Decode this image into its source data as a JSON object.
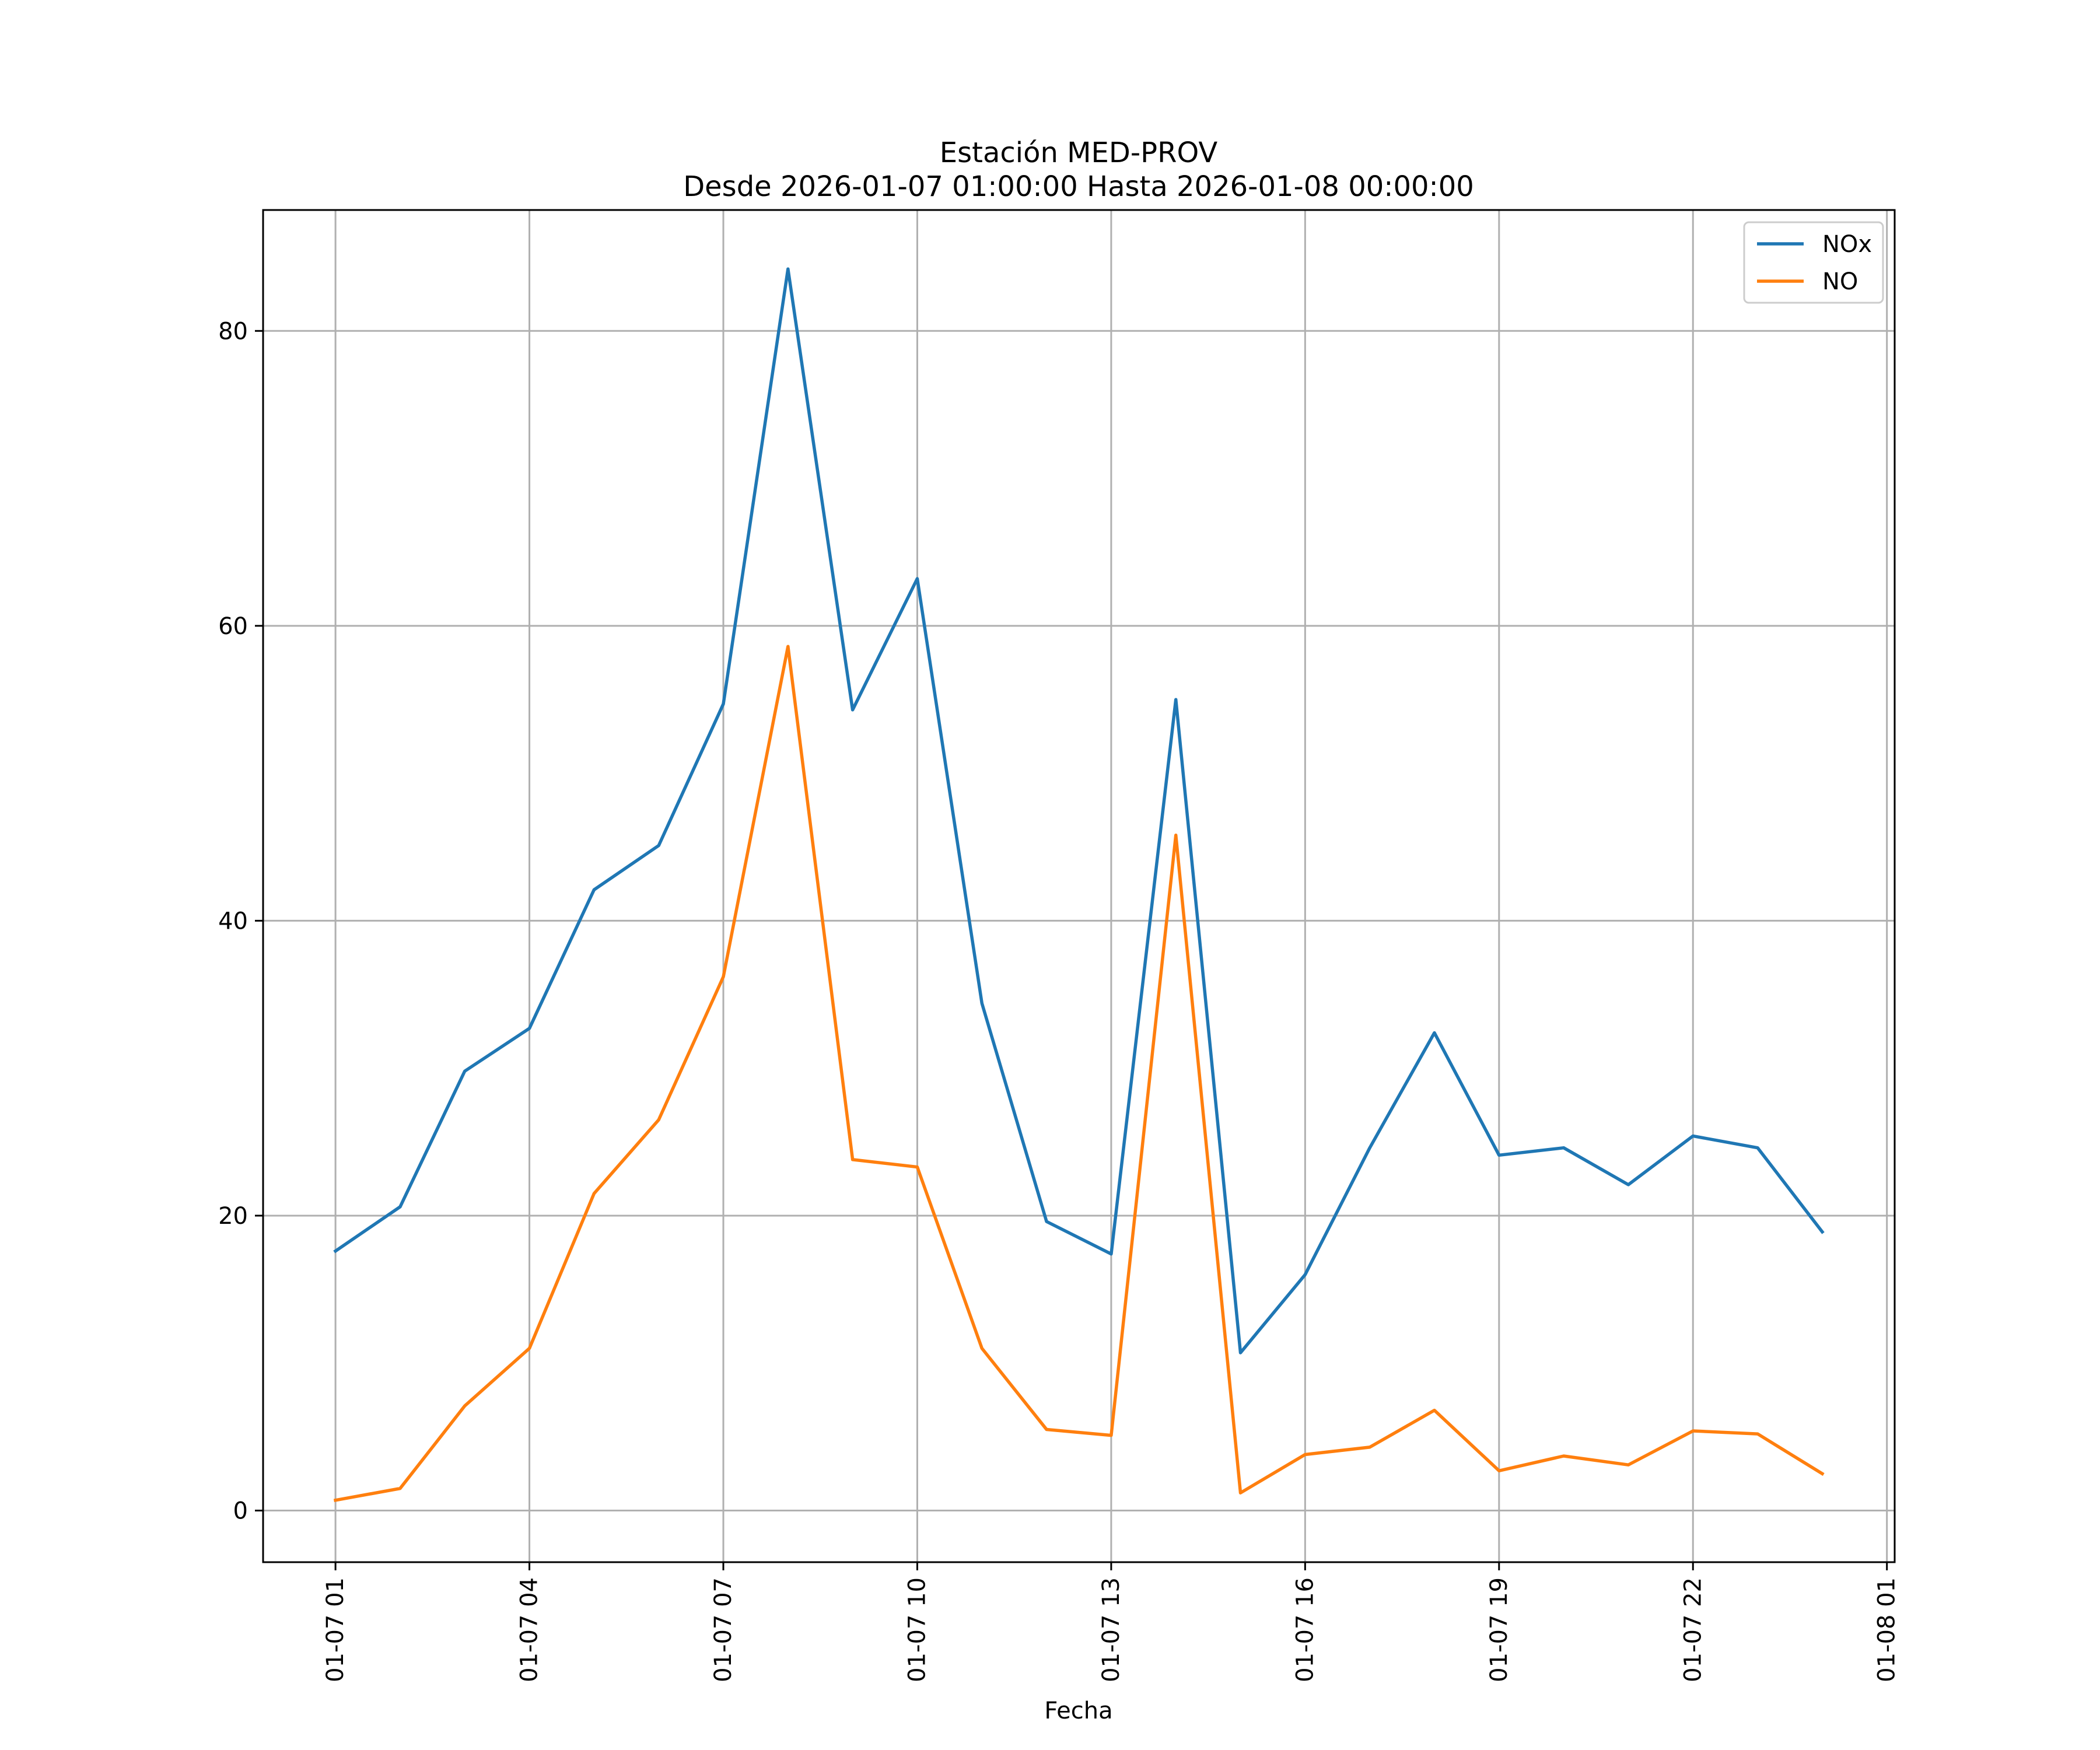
{
  "chart_data": {
    "type": "line",
    "title": "Estación MED-PROV",
    "subtitle": "Desde 2026-01-07 01:00:00 Hasta 2026-01-08 00:00:00",
    "xlabel": "Fecha",
    "ylabel": "",
    "x": [
      "01-07 01",
      "01-07 02",
      "01-07 03",
      "01-07 04",
      "01-07 05",
      "01-07 06",
      "01-07 07",
      "01-07 08",
      "01-07 09",
      "01-07 10",
      "01-07 11",
      "01-07 12",
      "01-07 13",
      "01-07 14",
      "01-07 15",
      "01-07 16",
      "01-07 17",
      "01-07 18",
      "01-07 19",
      "01-07 20",
      "01-07 21",
      "01-07 22",
      "01-07 23",
      "01-08 00"
    ],
    "x_hours": [
      1,
      2,
      3,
      4,
      5,
      6,
      7,
      8,
      9,
      10,
      11,
      12,
      13,
      14,
      15,
      16,
      17,
      18,
      19,
      20,
      21,
      22,
      23,
      24
    ],
    "xlim": [
      -0.12,
      25.12
    ],
    "ylim": [
      -3.5,
      88.2
    ],
    "xticks": [
      1,
      4,
      7,
      10,
      13,
      16,
      19,
      22,
      25
    ],
    "xtick_labels": [
      "01-07 01",
      "01-07 04",
      "01-07 07",
      "01-07 10",
      "01-07 13",
      "01-07 16",
      "01-07 19",
      "01-07 22",
      "01-08 01"
    ],
    "yticks": [
      0,
      20,
      40,
      60,
      80
    ],
    "ytick_labels": [
      "0",
      "20",
      "40",
      "60",
      "80"
    ],
    "grid": true,
    "legend_position": "top-right",
    "series": [
      {
        "name": "NOx",
        "color": "#1f77b4",
        "values": [
          17.6,
          20.6,
          29.8,
          32.7,
          42.1,
          45.1,
          54.7,
          84.2,
          54.3,
          63.2,
          34.4,
          19.6,
          17.4,
          55.0,
          10.7,
          16.0,
          24.6,
          32.4,
          24.1,
          24.6,
          22.1,
          25.4,
          24.6,
          18.9
        ]
      },
      {
        "name": "NO",
        "color": "#ff7f0e",
        "values": [
          0.7,
          1.5,
          7.1,
          11.0,
          21.5,
          26.5,
          36.2,
          58.6,
          23.8,
          23.3,
          11.0,
          5.5,
          5.1,
          45.8,
          1.2,
          3.8,
          4.3,
          6.8,
          2.7,
          3.7,
          3.1,
          5.4,
          5.2,
          2.5
        ]
      }
    ]
  }
}
